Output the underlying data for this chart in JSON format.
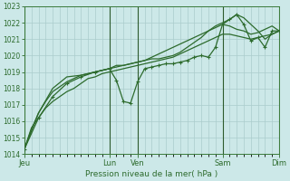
{
  "title": "",
  "xlabel": "Pression niveau de la mer( hPa )",
  "ylabel": "",
  "bg_color": "#cce8e8",
  "grid_color": "#aacccc",
  "line_color": "#2d6b2d",
  "ylim": [
    1014,
    1023
  ],
  "yticks": [
    1014,
    1015,
    1016,
    1017,
    1018,
    1019,
    1020,
    1021,
    1022,
    1023
  ],
  "xtick_positions": [
    0,
    36,
    48,
    84,
    108
  ],
  "xtick_labels": [
    "Jeu",
    "Lun",
    "Ven",
    "Sam",
    "Dim"
  ],
  "xlim": [
    0,
    108
  ],
  "vline_positions": [
    0,
    36,
    48,
    84,
    108
  ],
  "line1_x": [
    0,
    3,
    6,
    9,
    12,
    15,
    18,
    21,
    24,
    27,
    30,
    33,
    36,
    39,
    42,
    45,
    48,
    51,
    54,
    57,
    60,
    63,
    66,
    69,
    72,
    75,
    78,
    81,
    84,
    87,
    90,
    93,
    96,
    99,
    102,
    105,
    108
  ],
  "line1_y": [
    1014.3,
    1015.6,
    1016.2,
    1016.8,
    1017.2,
    1017.5,
    1017.8,
    1018.0,
    1018.3,
    1018.6,
    1018.7,
    1018.9,
    1019.0,
    1019.1,
    1019.2,
    1019.3,
    1019.4,
    1019.5,
    1019.6,
    1019.7,
    1019.8,
    1019.9,
    1020.1,
    1020.3,
    1020.5,
    1020.7,
    1020.9,
    1021.1,
    1021.3,
    1021.3,
    1021.2,
    1021.1,
    1021.0,
    1021.1,
    1021.2,
    1021.3,
    1021.5
  ],
  "line2_x": [
    0,
    3,
    6,
    9,
    12,
    15,
    18,
    21,
    24,
    27,
    30,
    33,
    36,
    39,
    42,
    45,
    48,
    51,
    54,
    57,
    60,
    63,
    66,
    69,
    72,
    75,
    78,
    81,
    84,
    87,
    90,
    93,
    96,
    99,
    102,
    105,
    108
  ],
  "line2_y": [
    1014.3,
    1015.5,
    1016.5,
    1017.2,
    1017.8,
    1018.1,
    1018.4,
    1018.6,
    1018.8,
    1018.9,
    1019.0,
    1019.1,
    1019.2,
    1019.3,
    1019.4,
    1019.5,
    1019.6,
    1019.7,
    1019.9,
    1020.1,
    1020.3,
    1020.5,
    1020.7,
    1020.9,
    1021.1,
    1021.3,
    1021.5,
    1021.7,
    1021.9,
    1021.8,
    1021.6,
    1021.5,
    1021.3,
    1021.4,
    1021.6,
    1021.8,
    1021.5
  ],
  "line3_x": [
    0,
    6,
    12,
    18,
    24,
    30,
    36,
    39,
    42,
    45,
    48,
    51,
    54,
    57,
    60,
    63,
    66,
    69,
    72,
    75,
    78,
    81,
    84,
    87,
    90,
    93,
    96,
    99,
    102,
    105,
    108
  ],
  "line3_y": [
    1014.3,
    1016.2,
    1017.5,
    1018.3,
    1018.7,
    1019.0,
    1019.2,
    1018.5,
    1017.2,
    1017.1,
    1018.4,
    1019.2,
    1019.3,
    1019.4,
    1019.5,
    1019.5,
    1019.6,
    1019.7,
    1019.9,
    1020.0,
    1019.9,
    1020.5,
    1021.9,
    1022.2,
    1022.5,
    1021.9,
    1020.9,
    1021.1,
    1020.5,
    1021.5,
    1021.5
  ],
  "line4_x": [
    0,
    6,
    12,
    18,
    24,
    30,
    36,
    39,
    42,
    45,
    48,
    51,
    54,
    57,
    60,
    63,
    66,
    69,
    72,
    75,
    78,
    81,
    84,
    87,
    90,
    93,
    96,
    99,
    102,
    105,
    108
  ],
  "line4_y": [
    1014.3,
    1016.5,
    1018.0,
    1018.7,
    1018.8,
    1019.0,
    1019.2,
    1019.4,
    1019.4,
    1019.5,
    1019.6,
    1019.7,
    1019.8,
    1019.8,
    1019.9,
    1020.0,
    1020.2,
    1020.5,
    1020.8,
    1021.1,
    1021.5,
    1021.8,
    1022.0,
    1022.2,
    1022.5,
    1022.3,
    1021.9,
    1021.5,
    1021.0,
    1021.3,
    1021.5
  ]
}
